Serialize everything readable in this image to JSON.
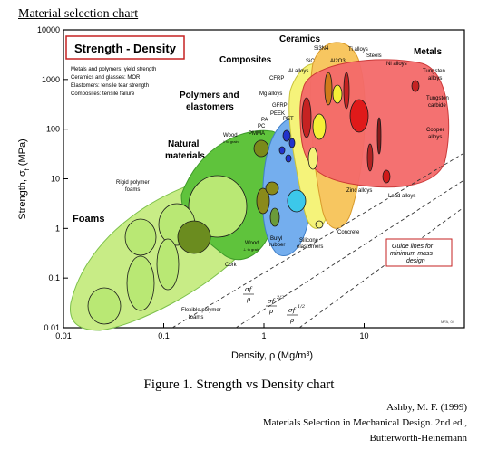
{
  "page": {
    "header": "Material selection chart",
    "caption": "Figure 1. Strength vs Density chart",
    "reference": {
      "line1": "Ashby, M. F. (1999)",
      "line2": "Materials Selection in Mechanical Design. 2nd ed.,",
      "line3": "Butterworth-Heinemann"
    }
  },
  "chart_data": {
    "type": "scatter",
    "title": "Strength - Density",
    "xlabel": "Density, ρ (Mg/m³)",
    "ylabel": "Strength, σf (MPa)",
    "x_scale": "log",
    "y_scale": "log",
    "xlim": [
      0.01,
      100
    ],
    "ylim": [
      0.01,
      10000
    ],
    "x_ticks": [
      "0.01",
      "0.1",
      "1",
      "10"
    ],
    "y_ticks": [
      "0.01",
      "0.1",
      "1",
      "10",
      "100",
      "1000",
      "10000"
    ],
    "grid": false,
    "notes": [
      "Metals and polymers: yield strength",
      "Ceramics and glasses: MOR",
      "Elastomers: tensile tear strength",
      "Composites: tensile failure"
    ],
    "families": [
      {
        "name": "Foams",
        "color": "#b9e874",
        "x_range": [
          0.015,
          0.9
        ],
        "y_range": [
          0.012,
          30
        ]
      },
      {
        "name": "Natural materials",
        "color": "#5ebf3a",
        "x_range": [
          0.2,
          1.5
        ],
        "y_range": [
          0.5,
          200
        ]
      },
      {
        "name": "Polymers and elastomers",
        "color": "#6fa8e8",
        "x_range": [
          0.85,
          2.4
        ],
        "y_range": [
          0.2,
          200
        ]
      },
      {
        "name": "Composites",
        "color": "#f2ef74",
        "x_range": [
          1.4,
          4
        ],
        "y_range": [
          0.6,
          1500
        ]
      },
      {
        "name": "Ceramics",
        "color": "#f6c35e",
        "x_range": [
          2.0,
          6.5
        ],
        "y_range": [
          1.5,
          5000
        ]
      },
      {
        "name": "Metals",
        "color": "#f25a5a",
        "x_range": [
          2.8,
          22
        ],
        "y_range": [
          8,
          4000
        ]
      }
    ],
    "material_labels": [
      "Rigid polymer foams",
      "Flexible polymer foams",
      "Cork",
      "Wood (⊥ grain)",
      "Wood (∥ grain)",
      "Butyl rubber",
      "Silicone elastomers",
      "Concrete",
      "Zinc alloys",
      "Lead alloys",
      "Copper alloys",
      "Tungsten carbide",
      "Tungsten alloys",
      "Ni alloys",
      "Steels",
      "Ti alloys",
      "Si3N4",
      "SiC",
      "Al2O3",
      "Al alloys",
      "CFRP",
      "GFRP",
      "Mg alloys",
      "PEEK",
      "PET",
      "PA",
      "PC",
      "PMMA"
    ],
    "guide_lines": [
      "σf/ρ",
      "σf^(2/3)/ρ",
      "σf^(1/2)/ρ"
    ],
    "guide_note": "Guide lines for minimum mass design",
    "credit": "MFA, 04"
  }
}
